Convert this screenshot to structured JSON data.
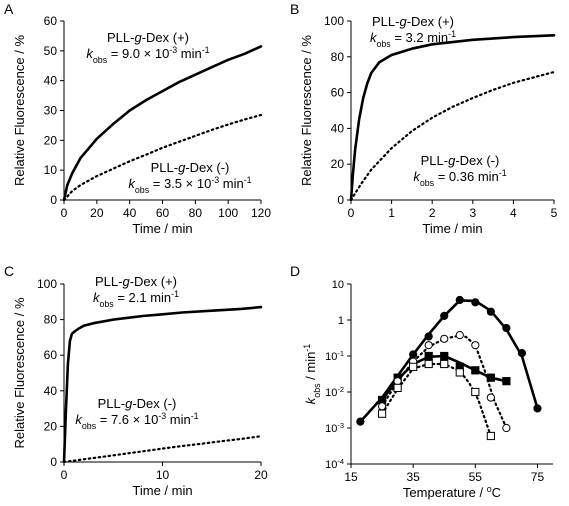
{
  "panels": [
    {
      "letter": "A"
    },
    {
      "letter": "B"
    },
    {
      "letter": "C"
    },
    {
      "letter": "D"
    }
  ],
  "chart_data": [
    {
      "type": "line",
      "panel": "A",
      "xlabel": "Time / min",
      "ylabel": "Relative Fluorescence / %",
      "xlim": [
        0,
        120
      ],
      "ylim": [
        0,
        60
      ],
      "xticks": [
        0,
        20,
        40,
        60,
        80,
        100,
        120
      ],
      "yticks": [
        0,
        10,
        20,
        30,
        40,
        50,
        60
      ],
      "annotations": [
        {
          "series": "PLL-g-Dex (+)",
          "kobs": "9.0 × 10-3 min-1"
        },
        {
          "series": "PLL-g-Dex (-)",
          "kobs": "3.5 × 10-3 min-1"
        }
      ],
      "series": [
        {
          "name": "PLL-g-Dex (+)",
          "style": "solid",
          "x": [
            0,
            2,
            5,
            10,
            20,
            30,
            40,
            50,
            60,
            70,
            80,
            90,
            100,
            110,
            120
          ],
          "y": [
            0,
            5,
            9,
            14,
            20.5,
            25.5,
            30,
            33.5,
            36.5,
            39.5,
            42,
            44.5,
            47,
            49,
            51.5
          ]
        },
        {
          "name": "PLL-g-Dex (-)",
          "style": "dotted",
          "x": [
            0,
            5,
            10,
            20,
            30,
            40,
            50,
            60,
            70,
            80,
            90,
            100,
            110,
            120
          ],
          "y": [
            0,
            3,
            5,
            8,
            10.5,
            13,
            15.2,
            17.5,
            19.5,
            21.5,
            23.5,
            25.3,
            27,
            28.5
          ]
        }
      ]
    },
    {
      "type": "line",
      "panel": "B",
      "xlabel": "Time / min",
      "ylabel": "Relative Fluorescence / %",
      "xlim": [
        0,
        5
      ],
      "ylim": [
        0,
        100
      ],
      "xticks": [
        0,
        1,
        2,
        3,
        4,
        5
      ],
      "yticks": [
        0,
        20,
        40,
        60,
        80,
        100
      ],
      "annotations": [
        {
          "series": "PLL-g-Dex (+)",
          "kobs": "3.2 min-1"
        },
        {
          "series": "PLL-g-Dex (-)",
          "kobs": "0.36 min-1"
        }
      ],
      "series": [
        {
          "name": "PLL-g-Dex (+)",
          "style": "solid",
          "x": [
            0,
            0.05,
            0.1,
            0.2,
            0.3,
            0.4,
            0.5,
            0.7,
            1,
            1.5,
            2,
            3,
            4,
            5
          ],
          "y": [
            0,
            15,
            28,
            45,
            57,
            65,
            71,
            77,
            81,
            84.5,
            87,
            89.5,
            91,
            92
          ]
        },
        {
          "name": "PLL-g-Dex (-)",
          "style": "dotted",
          "x": [
            0,
            0.25,
            0.5,
            1,
            1.5,
            2,
            2.5,
            3,
            3.5,
            4,
            4.5,
            5
          ],
          "y": [
            0,
            9,
            17,
            29,
            38.5,
            46,
            52,
            57,
            61.5,
            65.5,
            68.5,
            71.5
          ]
        }
      ]
    },
    {
      "type": "line",
      "panel": "C",
      "xlabel": "Time / min",
      "ylabel": "Relative Fluorescence / %",
      "xlim": [
        0,
        20
      ],
      "ylim": [
        0,
        100
      ],
      "xticks": [
        0,
        10,
        20
      ],
      "yticks": [
        0,
        20,
        40,
        60,
        80,
        100
      ],
      "annotations": [
        {
          "series": "PLL-g-Dex (+)",
          "kobs": "2.1 min-1"
        },
        {
          "series": "PLL-g-Dex (-)",
          "kobs": "7.6 × 10-3 min-1"
        }
      ],
      "series": [
        {
          "name": "PLL-g-Dex (+)",
          "style": "solid",
          "x": [
            0,
            0.2,
            0.4,
            0.6,
            0.8,
            1,
            1.5,
            2,
            3,
            5,
            8,
            10,
            12,
            15,
            18,
            20
          ],
          "y": [
            0,
            30,
            55,
            68,
            72,
            73,
            75,
            76.5,
            78,
            80,
            82,
            83,
            84,
            85,
            86,
            87
          ]
        },
        {
          "name": "PLL-g-Dex (-)",
          "style": "dotted",
          "x": [
            0,
            2,
            4,
            6,
            8,
            10,
            12,
            14,
            16,
            18,
            20
          ],
          "y": [
            0,
            1.5,
            3,
            4.5,
            6,
            7.5,
            9,
            10.3,
            11.7,
            13,
            14.5
          ]
        }
      ]
    },
    {
      "type": "scatter",
      "panel": "D",
      "xlabel": "Temperature / oC",
      "ylabel": "kobs / min-1",
      "xlim": [
        15,
        80
      ],
      "ylim": [
        0.0001,
        10
      ],
      "yscale": "log",
      "xticks": [
        15,
        35,
        55,
        75
      ],
      "yticks": [
        0.0001,
        0.001,
        0.01,
        0.1,
        1,
        10
      ],
      "ytick_labels": [
        "10-4",
        "10-3",
        "10-2",
        "10-1",
        "1",
        "10"
      ],
      "series": [
        {
          "marker": "filled-circle",
          "line": "solid",
          "x": [
            18,
            25,
            30,
            35,
            40,
            45,
            50,
            55,
            60,
            65,
            70,
            75
          ],
          "y": [
            0.0015,
            0.006,
            0.025,
            0.11,
            0.35,
            1.3,
            3.6,
            3.1,
            1.7,
            0.6,
            0.12,
            0.0035
          ],
          "fit_x": [
            18,
            25,
            30,
            35,
            40,
            45,
            50,
            55,
            60,
            65,
            70,
            75
          ],
          "fit_y": [
            0.0015,
            0.007,
            0.028,
            0.11,
            0.4,
            1.3,
            3.5,
            3.4,
            1.8,
            0.55,
            0.1,
            0.0035
          ]
        },
        {
          "marker": "filled-square",
          "line": "solid",
          "x": [
            25,
            30,
            35,
            40,
            45,
            50,
            55,
            60,
            65
          ],
          "y": [
            0.006,
            0.025,
            0.06,
            0.1,
            0.1,
            0.05,
            0.04,
            0.025,
            0.02
          ],
          "fit_x": [
            25,
            30,
            35,
            40,
            45,
            50,
            55,
            60,
            65
          ],
          "fit_y": [
            0.006,
            0.022,
            0.06,
            0.095,
            0.1,
            0.065,
            0.04,
            0.025,
            0.02
          ]
        },
        {
          "marker": "open-circle",
          "line": "dotted",
          "x": [
            25,
            30,
            35,
            40,
            45,
            50,
            55,
            60,
            65
          ],
          "y": [
            0.004,
            0.02,
            0.07,
            0.2,
            0.3,
            0.38,
            0.2,
            0.007,
            0.001
          ],
          "fit_x": [
            25,
            30,
            35,
            40,
            45,
            50,
            52,
            55,
            58,
            61,
            65
          ],
          "fit_y": [
            0.004,
            0.02,
            0.07,
            0.18,
            0.3,
            0.37,
            0.34,
            0.2,
            0.04,
            0.006,
            0.001
          ]
        },
        {
          "marker": "open-square",
          "line": "dotted",
          "x": [
            25,
            30,
            35,
            40,
            45,
            50,
            55,
            60
          ],
          "y": [
            0.0025,
            0.013,
            0.05,
            0.06,
            0.06,
            0.035,
            0.01,
            0.0006
          ],
          "fit_x": [
            25,
            30,
            35,
            40,
            45,
            50,
            53,
            56,
            60
          ],
          "fit_y": [
            0.0025,
            0.012,
            0.045,
            0.06,
            0.06,
            0.038,
            0.018,
            0.006,
            0.0006
          ]
        }
      ]
    }
  ]
}
